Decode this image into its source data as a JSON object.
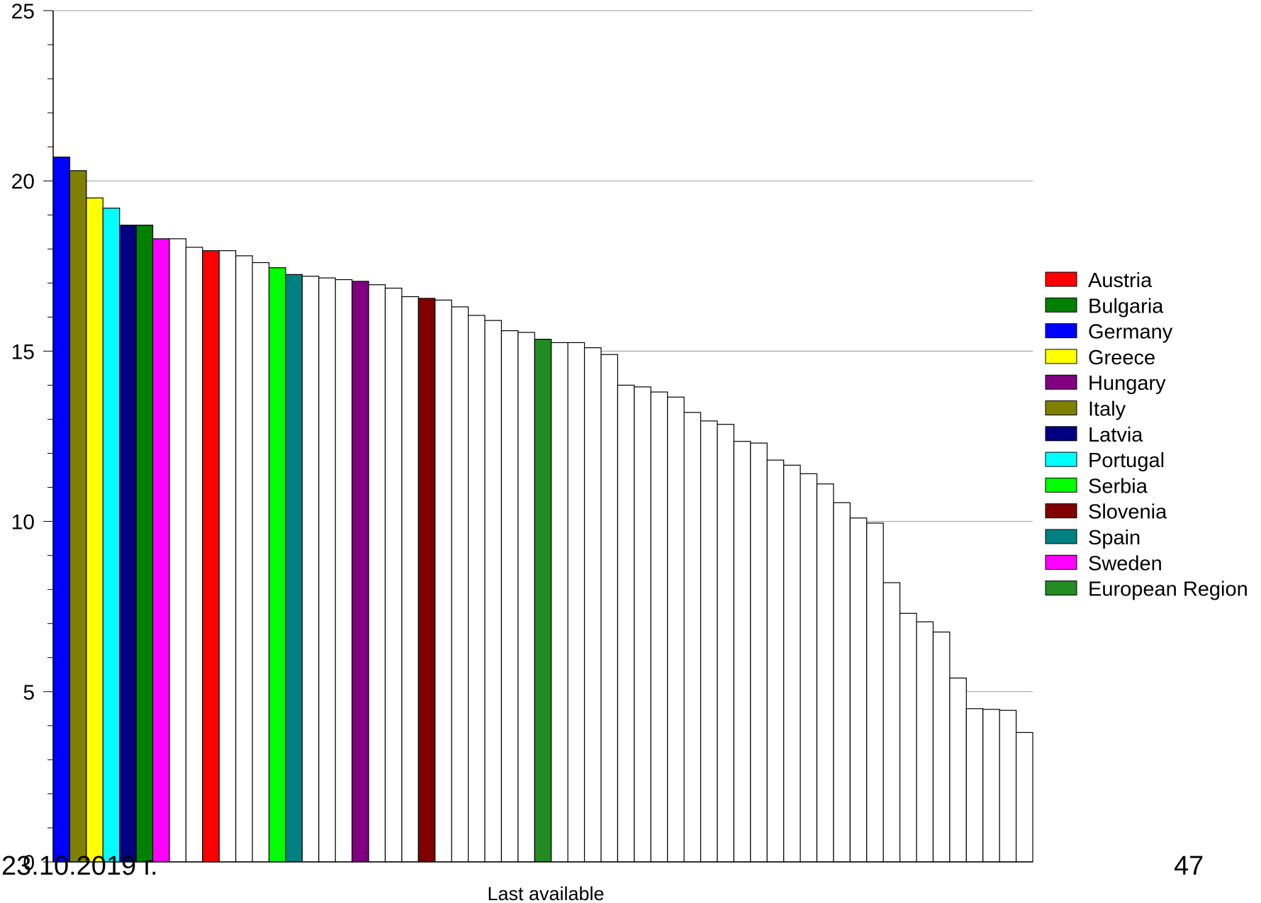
{
  "slide": {
    "date": "23.10.2019 г.",
    "page_number": "47"
  },
  "chart_data": {
    "type": "bar",
    "title": "",
    "xlabel": "Last available",
    "ylabel": "",
    "ylim": [
      0,
      25
    ],
    "yticks": [
      0,
      5,
      10,
      15,
      20,
      25
    ],
    "grid": true,
    "legend_position": "right",
    "default_bar_color": "#ffffff",
    "bars": [
      {
        "value": 20.7,
        "legend": "Germany"
      },
      {
        "value": 20.3,
        "legend": "Italy"
      },
      {
        "value": 19.5,
        "legend": "Greece"
      },
      {
        "value": 19.2,
        "legend": "Portugal"
      },
      {
        "value": 18.7,
        "legend": "Latvia"
      },
      {
        "value": 18.7,
        "legend": "Bulgaria"
      },
      {
        "value": 18.3,
        "legend": "Sweden"
      },
      {
        "value": 18.3
      },
      {
        "value": 18.05
      },
      {
        "value": 17.95,
        "legend": "Austria"
      },
      {
        "value": 17.95
      },
      {
        "value": 17.8
      },
      {
        "value": 17.6
      },
      {
        "value": 17.45,
        "legend": "Serbia"
      },
      {
        "value": 17.25,
        "legend": "Spain"
      },
      {
        "value": 17.2
      },
      {
        "value": 17.15
      },
      {
        "value": 17.1
      },
      {
        "value": 17.05,
        "legend": "Hungary"
      },
      {
        "value": 16.95
      },
      {
        "value": 16.85
      },
      {
        "value": 16.6
      },
      {
        "value": 16.55,
        "legend": "Slovenia"
      },
      {
        "value": 16.5
      },
      {
        "value": 16.3
      },
      {
        "value": 16.05
      },
      {
        "value": 15.9
      },
      {
        "value": 15.6
      },
      {
        "value": 15.55
      },
      {
        "value": 15.35,
        "legend": "European Region"
      },
      {
        "value": 15.25
      },
      {
        "value": 15.25
      },
      {
        "value": 15.1
      },
      {
        "value": 14.9
      },
      {
        "value": 14.0
      },
      {
        "value": 13.95
      },
      {
        "value": 13.8
      },
      {
        "value": 13.65
      },
      {
        "value": 13.2
      },
      {
        "value": 12.95
      },
      {
        "value": 12.85
      },
      {
        "value": 12.35
      },
      {
        "value": 12.3
      },
      {
        "value": 11.8
      },
      {
        "value": 11.65
      },
      {
        "value": 11.4
      },
      {
        "value": 11.1
      },
      {
        "value": 10.55
      },
      {
        "value": 10.1
      },
      {
        "value": 9.95
      },
      {
        "value": 8.2
      },
      {
        "value": 7.3
      },
      {
        "value": 7.05
      },
      {
        "value": 6.75
      },
      {
        "value": 5.4
      },
      {
        "value": 4.5
      },
      {
        "value": 4.48
      },
      {
        "value": 4.45
      },
      {
        "value": 3.8
      }
    ],
    "legend": [
      {
        "label": "Austria",
        "color": "#ff0000"
      },
      {
        "label": "Bulgaria",
        "color": "#008000"
      },
      {
        "label": "Germany",
        "color": "#0000ff"
      },
      {
        "label": "Greece",
        "color": "#ffff00"
      },
      {
        "label": "Hungary",
        "color": "#800080"
      },
      {
        "label": "Italy",
        "color": "#808000"
      },
      {
        "label": "Latvia",
        "color": "#000080"
      },
      {
        "label": "Portugal",
        "color": "#00ffff"
      },
      {
        "label": "Serbia",
        "color": "#00ff00"
      },
      {
        "label": "Slovenia",
        "color": "#800000"
      },
      {
        "label": "Spain",
        "color": "#008080"
      },
      {
        "label": "Sweden",
        "color": "#ff00ff"
      },
      {
        "label": "European Region",
        "color": "#228b22"
      }
    ]
  }
}
